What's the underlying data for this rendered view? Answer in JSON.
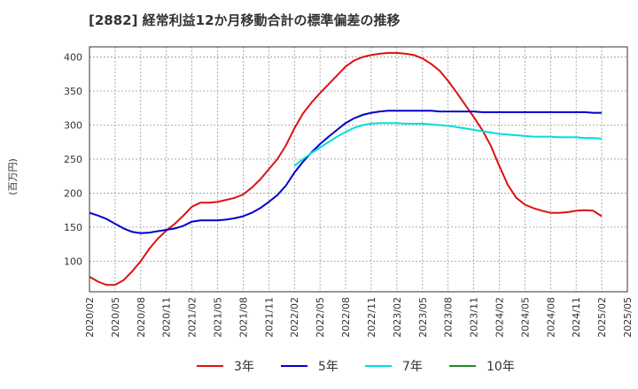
{
  "chart_data": {
    "type": "line",
    "title": "[2882]  経常利益12か月移動合計の標準偏差の推移",
    "ylabel": "(百万円)",
    "xlabel": "",
    "ylim": [
      55,
      415
    ],
    "yticks": [
      100,
      150,
      200,
      250,
      300,
      350,
      400
    ],
    "xticks": [
      "2020/02",
      "2020/05",
      "2020/08",
      "2020/11",
      "2021/02",
      "2021/05",
      "2021/08",
      "2021/11",
      "2022/02",
      "2022/05",
      "2022/08",
      "2022/11",
      "2023/02",
      "2023/05",
      "2023/08",
      "2023/11",
      "2024/02",
      "2024/05",
      "2024/08",
      "2024/11",
      "2025/02",
      "2025/05"
    ],
    "grid": true,
    "legend_position": "bottom",
    "series": [
      {
        "name": "3年",
        "color": "#dd1111",
        "values": [
          [
            "2020/02",
            77
          ],
          [
            "2020/03",
            70
          ],
          [
            "2020/04",
            65
          ],
          [
            "2020/05",
            65
          ],
          [
            "2020/06",
            72
          ],
          [
            "2020/07",
            85
          ],
          [
            "2020/08",
            100
          ],
          [
            "2020/09",
            118
          ],
          [
            "2020/10",
            133
          ],
          [
            "2020/11",
            145
          ],
          [
            "2020/12",
            155
          ],
          [
            "2021/01",
            167
          ],
          [
            "2021/02",
            180
          ],
          [
            "2021/03",
            186
          ],
          [
            "2021/04",
            186
          ],
          [
            "2021/05",
            187
          ],
          [
            "2021/06",
            190
          ],
          [
            "2021/07",
            193
          ],
          [
            "2021/08",
            198
          ],
          [
            "2021/09",
            208
          ],
          [
            "2021/10",
            220
          ],
          [
            "2021/11",
            235
          ],
          [
            "2021/12",
            250
          ],
          [
            "2022/01",
            270
          ],
          [
            "2022/02",
            295
          ],
          [
            "2022/03",
            317
          ],
          [
            "2022/04",
            333
          ],
          [
            "2022/05",
            347
          ],
          [
            "2022/06",
            360
          ],
          [
            "2022/07",
            373
          ],
          [
            "2022/08",
            386
          ],
          [
            "2022/09",
            395
          ],
          [
            "2022/10",
            400
          ],
          [
            "2022/11",
            403
          ],
          [
            "2022/12",
            405
          ],
          [
            "2023/01",
            406
          ],
          [
            "2023/02",
            406
          ],
          [
            "2023/03",
            405
          ],
          [
            "2023/04",
            403
          ],
          [
            "2023/05",
            398
          ],
          [
            "2023/06",
            390
          ],
          [
            "2023/07",
            380
          ],
          [
            "2023/08",
            365
          ],
          [
            "2023/09",
            348
          ],
          [
            "2023/10",
            330
          ],
          [
            "2023/11",
            312
          ],
          [
            "2023/12",
            293
          ],
          [
            "2024/01",
            270
          ],
          [
            "2024/02",
            240
          ],
          [
            "2024/03",
            212
          ],
          [
            "2024/04",
            193
          ],
          [
            "2024/05",
            183
          ],
          [
            "2024/06",
            178
          ],
          [
            "2024/07",
            174
          ],
          [
            "2024/08",
            171
          ],
          [
            "2024/09",
            171
          ],
          [
            "2024/10",
            172
          ],
          [
            "2024/11",
            174
          ],
          [
            "2024/12",
            175
          ],
          [
            "2025/01",
            174
          ],
          [
            "2025/02",
            166
          ]
        ]
      },
      {
        "name": "5年",
        "color": "#0000cc",
        "values": [
          [
            "2020/02",
            171
          ],
          [
            "2020/03",
            167
          ],
          [
            "2020/04",
            162
          ],
          [
            "2020/05",
            155
          ],
          [
            "2020/06",
            148
          ],
          [
            "2020/07",
            143
          ],
          [
            "2020/08",
            141
          ],
          [
            "2020/09",
            142
          ],
          [
            "2020/10",
            144
          ],
          [
            "2020/11",
            146
          ],
          [
            "2020/12",
            148
          ],
          [
            "2021/01",
            152
          ],
          [
            "2021/02",
            158
          ],
          [
            "2021/03",
            160
          ],
          [
            "2021/04",
            160
          ],
          [
            "2021/05",
            160
          ],
          [
            "2021/06",
            161
          ],
          [
            "2021/07",
            163
          ],
          [
            "2021/08",
            166
          ],
          [
            "2021/09",
            171
          ],
          [
            "2021/10",
            178
          ],
          [
            "2021/11",
            187
          ],
          [
            "2021/12",
            197
          ],
          [
            "2022/01",
            211
          ],
          [
            "2022/02",
            230
          ],
          [
            "2022/03",
            246
          ],
          [
            "2022/04",
            260
          ],
          [
            "2022/05",
            272
          ],
          [
            "2022/06",
            283
          ],
          [
            "2022/07",
            293
          ],
          [
            "2022/08",
            303
          ],
          [
            "2022/09",
            310
          ],
          [
            "2022/10",
            315
          ],
          [
            "2022/11",
            318
          ],
          [
            "2022/12",
            320
          ],
          [
            "2023/01",
            321
          ],
          [
            "2023/02",
            321
          ],
          [
            "2023/03",
            321
          ],
          [
            "2023/04",
            321
          ],
          [
            "2023/05",
            321
          ],
          [
            "2023/06",
            321
          ],
          [
            "2023/07",
            320
          ],
          [
            "2023/08",
            320
          ],
          [
            "2023/09",
            320
          ],
          [
            "2023/10",
            320
          ],
          [
            "2023/11",
            320
          ],
          [
            "2023/12",
            319
          ],
          [
            "2024/01",
            319
          ],
          [
            "2024/02",
            319
          ],
          [
            "2024/03",
            319
          ],
          [
            "2024/04",
            319
          ],
          [
            "2024/05",
            319
          ],
          [
            "2024/06",
            319
          ],
          [
            "2024/07",
            319
          ],
          [
            "2024/08",
            319
          ],
          [
            "2024/09",
            319
          ],
          [
            "2024/10",
            319
          ],
          [
            "2024/11",
            319
          ],
          [
            "2024/12",
            319
          ],
          [
            "2025/01",
            318
          ],
          [
            "2025/02",
            318
          ]
        ]
      },
      {
        "name": "7年",
        "color": "#00dddd",
        "values": [
          [
            "2022/02",
            240
          ],
          [
            "2022/03",
            250
          ],
          [
            "2022/04",
            259
          ],
          [
            "2022/05",
            267
          ],
          [
            "2022/06",
            275
          ],
          [
            "2022/07",
            283
          ],
          [
            "2022/08",
            290
          ],
          [
            "2022/09",
            296
          ],
          [
            "2022/10",
            300
          ],
          [
            "2022/11",
            302
          ],
          [
            "2022/12",
            303
          ],
          [
            "2023/01",
            303
          ],
          [
            "2023/02",
            303
          ],
          [
            "2023/03",
            302
          ],
          [
            "2023/04",
            302
          ],
          [
            "2023/05",
            302
          ],
          [
            "2023/06",
            301
          ],
          [
            "2023/07",
            300
          ],
          [
            "2023/08",
            299
          ],
          [
            "2023/09",
            297
          ],
          [
            "2023/10",
            295
          ],
          [
            "2023/11",
            293
          ],
          [
            "2023/12",
            291
          ],
          [
            "2024/01",
            289
          ],
          [
            "2024/02",
            287
          ],
          [
            "2024/03",
            286
          ],
          [
            "2024/04",
            285
          ],
          [
            "2024/05",
            284
          ],
          [
            "2024/06",
            283
          ],
          [
            "2024/07",
            283
          ],
          [
            "2024/08",
            283
          ],
          [
            "2024/09",
            282
          ],
          [
            "2024/10",
            282
          ],
          [
            "2024/11",
            282
          ],
          [
            "2024/12",
            281
          ],
          [
            "2025/01",
            281
          ],
          [
            "2025/02",
            280
          ]
        ]
      },
      {
        "name": "10年",
        "color": "#228822",
        "values": []
      }
    ]
  }
}
